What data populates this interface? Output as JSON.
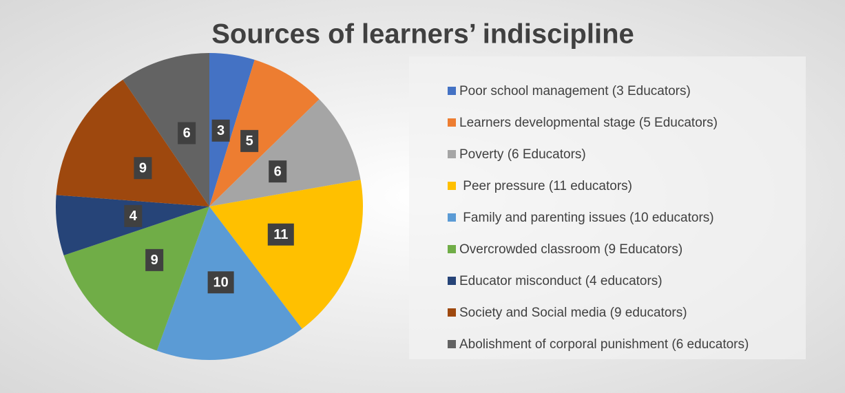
{
  "chart_data": {
    "type": "pie",
    "title": "Sources of learners’ indiscipline",
    "categories": [
      "Poor school management (3 Educators)",
      "Learners developmental stage (5 Educators)",
      "Poverty (6 Educators)",
      " Peer pressure (11 educators)",
      " Family and parenting issues (10 educators)",
      "Overcrowded classroom (9 Educators)",
      "Educator misconduct (4 educators)",
      "Society and Social media (9 educators)",
      "Abolishment of corporal punishment (6 educators)"
    ],
    "values": [
      3,
      5,
      6,
      11,
      10,
      9,
      4,
      9,
      6
    ],
    "colors": [
      "#4472c4",
      "#ed7d31",
      "#a5a5a5",
      "#ffc000",
      "#5b9bd5",
      "#70ad47",
      "#264478",
      "#9e480e",
      "#636363"
    ],
    "legend": "right"
  }
}
